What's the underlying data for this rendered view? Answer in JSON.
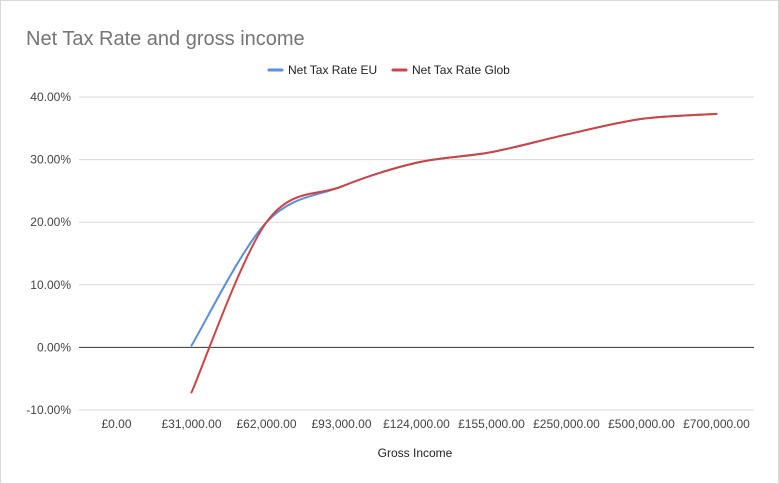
{
  "chart_data": {
    "type": "line",
    "title": "Net Tax Rate and gross income",
    "xlabel": "Gross Income",
    "ylabel": "",
    "categories": [
      "£0.00",
      "£31,000.00",
      "£62,000.00",
      "£93,000.00",
      "£124,000.00",
      "£155,000.00",
      "£250,000.00",
      "£500,000.00",
      "£700,000.00"
    ],
    "y_ticks": [
      "-10.00%",
      "0.00%",
      "10.00%",
      "20.00%",
      "30.00%",
      "40.00%"
    ],
    "ylim": [
      -0.1,
      0.4
    ],
    "legend_position": "top",
    "grid": true,
    "series": [
      {
        "name": "Net Tax Rate EU",
        "color": "#5b8fdb",
        "values": [
          null,
          0.003,
          0.2,
          0.257,
          0.295,
          0.312,
          0.34,
          0.365,
          0.373
        ]
      },
      {
        "name": "Net Tax Rate Glob",
        "color": "#cc4444",
        "values": [
          null,
          -0.072,
          0.2,
          0.257,
          0.295,
          0.312,
          0.34,
          0.365,
          0.373
        ]
      }
    ]
  }
}
